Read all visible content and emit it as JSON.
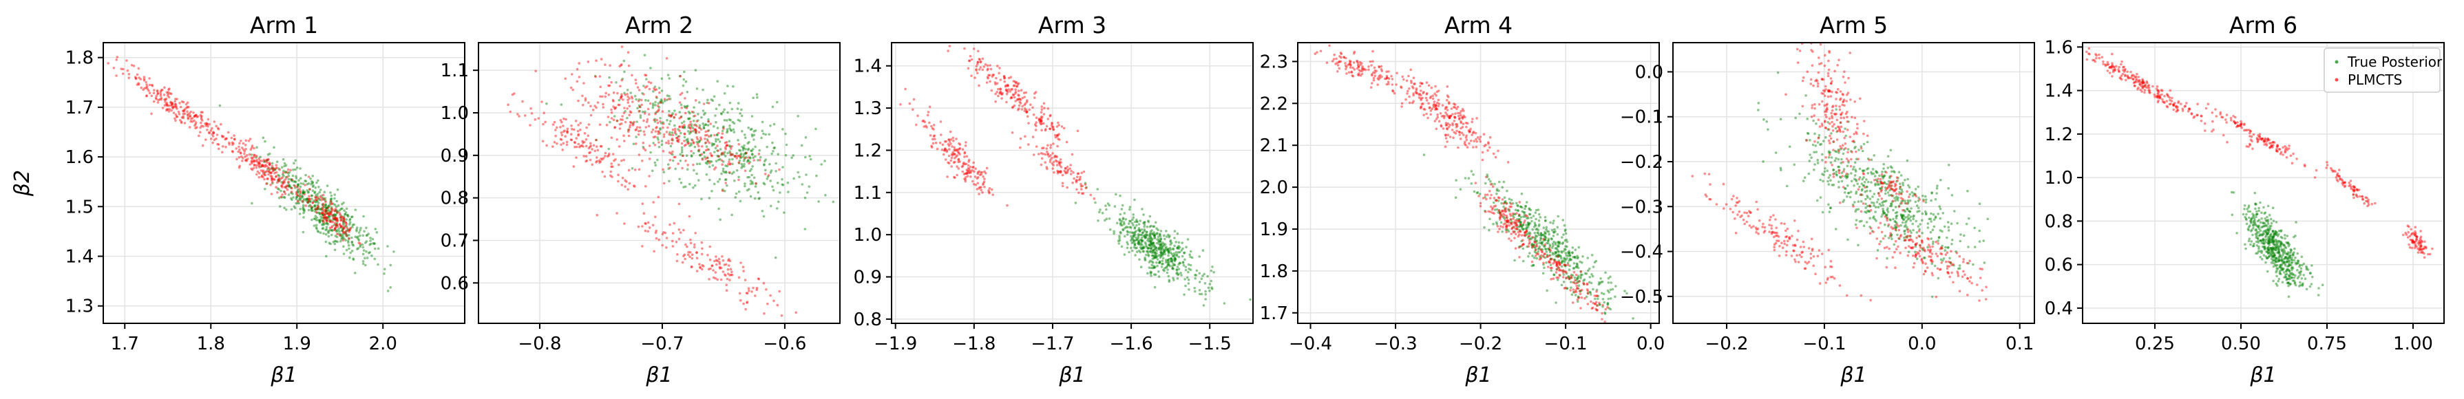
{
  "chart_data": [
    {
      "type": "scatter",
      "title": "Arm 1",
      "xlabel": "β1",
      "ylabel": "β2",
      "xlim": [
        1.675,
        2.095
      ],
      "ylim": [
        1.265,
        1.83
      ],
      "xticks": [
        1.7,
        1.8,
        1.9,
        2.0
      ],
      "xtick_labels": [
        "1.7",
        "1.8",
        "1.9",
        "2.0"
      ],
      "yticks": [
        1.3,
        1.4,
        1.5,
        1.6,
        1.7,
        1.8
      ],
      "ytick_labels": [
        "1.3",
        "1.4",
        "1.5",
        "1.6",
        "1.7",
        "1.8"
      ],
      "grid": true,
      "series": [
        {
          "name": "True Posterior",
          "color": "#008000",
          "clusters": [
            {
              "cx": 1.93,
              "cy": 1.49,
              "major": 0.085,
              "minor": 0.024,
              "angle_deg": -44,
              "n": 520
            }
          ]
        },
        {
          "name": "PLMCTS",
          "color": "#ff0000",
          "clusters": [
            {
              "cx": 1.76,
              "cy": 1.7,
              "major": 0.075,
              "minor": 0.012,
              "angle_deg": -36,
              "n": 220
            },
            {
              "cx": 1.86,
              "cy": 1.58,
              "major": 0.06,
              "minor": 0.014,
              "angle_deg": -38,
              "n": 200
            },
            {
              "cx": 1.94,
              "cy": 1.48,
              "major": 0.04,
              "minor": 0.012,
              "angle_deg": -42,
              "n": 140
            }
          ]
        }
      ]
    },
    {
      "type": "scatter",
      "title": "Arm 2",
      "xlabel": "β1",
      "ylabel": "",
      "xlim": [
        -0.85,
        -0.555
      ],
      "ylim": [
        0.505,
        1.165
      ],
      "xticks": [
        -0.8,
        -0.7,
        -0.6
      ],
      "xtick_labels": [
        "−0.8",
        "−0.7",
        "−0.6"
      ],
      "yticks": [
        0.6,
        0.7,
        0.8,
        0.9,
        1.0,
        1.1
      ],
      "ytick_labels": [
        "0.6",
        "0.7",
        "0.8",
        "0.9",
        "1.0",
        "1.1"
      ],
      "grid": true,
      "series": [
        {
          "name": "True Posterior",
          "color": "#008000",
          "clusters": [
            {
              "cx": -0.655,
              "cy": 0.93,
              "major": 0.085,
              "minor": 0.04,
              "angle_deg": -30,
              "n": 520
            }
          ]
        },
        {
          "name": "PLMCTS",
          "color": "#ff0000",
          "clusters": [
            {
              "cx": -0.72,
              "cy": 1.0,
              "major": 0.06,
              "minor": 0.035,
              "angle_deg": -25,
              "n": 260
            },
            {
              "cx": -0.66,
              "cy": 0.92,
              "major": 0.04,
              "minor": 0.02,
              "angle_deg": -30,
              "n": 120
            },
            {
              "cx": -0.765,
              "cy": 0.92,
              "major": 0.075,
              "minor": 0.012,
              "angle_deg": -35,
              "n": 140
            },
            {
              "cx": -0.66,
              "cy": 0.645,
              "major": 0.075,
              "minor": 0.014,
              "angle_deg": -30,
              "n": 150
            }
          ]
        }
      ]
    },
    {
      "type": "scatter",
      "title": "Arm 3",
      "xlabel": "β1",
      "ylabel": "",
      "xlim": [
        -1.905,
        -1.445
      ],
      "ylim": [
        0.79,
        1.455
      ],
      "xticks": [
        -1.9,
        -1.8,
        -1.7,
        -1.6,
        -1.5
      ],
      "xtick_labels": [
        "−1.9",
        "−1.8",
        "−1.7",
        "−1.6",
        "−1.5"
      ],
      "yticks": [
        0.8,
        0.9,
        1.0,
        1.1,
        1.2,
        1.3,
        1.4
      ],
      "ytick_labels": [
        "0.8",
        "0.9",
        "1.0",
        "1.1",
        "1.2",
        "1.3",
        "1.4"
      ],
      "grid": true,
      "series": [
        {
          "name": "True Posterior",
          "color": "#008000",
          "clusters": [
            {
              "cx": -1.57,
              "cy": 0.97,
              "major": 0.075,
              "minor": 0.025,
              "angle_deg": -40,
              "n": 540
            }
          ]
        },
        {
          "name": "PLMCTS",
          "color": "#ff0000",
          "clusters": [
            {
              "cx": -1.75,
              "cy": 1.33,
              "major": 0.1,
              "minor": 0.015,
              "angle_deg": -42,
              "n": 220
            },
            {
              "cx": -1.82,
              "cy": 1.18,
              "major": 0.075,
              "minor": 0.015,
              "angle_deg": -48,
              "n": 180
            },
            {
              "cx": -1.69,
              "cy": 1.16,
              "major": 0.045,
              "minor": 0.012,
              "angle_deg": -40,
              "n": 100
            }
          ]
        }
      ]
    },
    {
      "type": "scatter",
      "title": "Arm 4",
      "xlabel": "β1",
      "ylabel": "",
      "xlim": [
        -0.415,
        0.01
      ],
      "ylim": [
        1.675,
        2.345
      ],
      "xticks": [
        -0.4,
        -0.3,
        -0.2,
        -0.1,
        0.0
      ],
      "xtick_labels": [
        "−0.4",
        "−0.3",
        "−0.2",
        "−0.1",
        "0.0"
      ],
      "yticks": [
        1.7,
        1.8,
        1.9,
        2.0,
        2.1,
        2.2,
        2.3
      ],
      "ytick_labels": [
        "1.7",
        "1.8",
        "1.9",
        "2.0",
        "2.1",
        "2.2",
        "2.3"
      ],
      "grid": true,
      "series": [
        {
          "name": "True Posterior",
          "color": "#008000",
          "clusters": [
            {
              "cx": -0.12,
              "cy": 1.86,
              "major": 0.1,
              "minor": 0.025,
              "angle_deg": -42,
              "n": 520
            }
          ]
        },
        {
          "name": "PLMCTS",
          "color": "#ff0000",
          "clusters": [
            {
              "cx": -0.34,
              "cy": 2.28,
              "major": 0.05,
              "minor": 0.012,
              "angle_deg": -22,
              "n": 120
            },
            {
              "cx": -0.24,
              "cy": 2.17,
              "major": 0.075,
              "minor": 0.02,
              "angle_deg": -40,
              "n": 240
            },
            {
              "cx": -0.17,
              "cy": 1.93,
              "major": 0.04,
              "minor": 0.015,
              "angle_deg": -50,
              "n": 120
            },
            {
              "cx": -0.1,
              "cy": 1.79,
              "major": 0.09,
              "minor": 0.012,
              "angle_deg": -45,
              "n": 160
            }
          ]
        }
      ]
    },
    {
      "type": "scatter",
      "title": "Arm 5",
      "xlabel": "β1",
      "ylabel": "",
      "xlim": [
        -0.255,
        0.115
      ],
      "ylim": [
        -0.56,
        0.065
      ],
      "xticks": [
        -0.2,
        -0.1,
        0.0,
        0.1
      ],
      "xtick_labels": [
        "−0.2",
        "−0.1",
        "0.0",
        "0.1"
      ],
      "yticks": [
        -0.5,
        -0.4,
        -0.3,
        -0.2,
        -0.1,
        0.0
      ],
      "ytick_labels": [
        "−0.5",
        "−0.4",
        "−0.3",
        "−0.2",
        "−0.1",
        "0.0"
      ],
      "grid": true,
      "series": [
        {
          "name": "True Posterior",
          "color": "#008000",
          "clusters": [
            {
              "cx": -0.04,
              "cy": -0.28,
              "major": 0.1,
              "minor": 0.04,
              "angle_deg": -35,
              "n": 560
            }
          ]
        },
        {
          "name": "PLMCTS",
          "color": "#ff0000",
          "clusters": [
            {
              "cx": -0.09,
              "cy": -0.08,
              "major": 0.075,
              "minor": 0.025,
              "angle_deg": -75,
              "n": 220
            },
            {
              "cx": -0.15,
              "cy": -0.36,
              "major": 0.09,
              "minor": 0.015,
              "angle_deg": -35,
              "n": 150
            },
            {
              "cx": 0.0,
              "cy": -0.4,
              "major": 0.07,
              "minor": 0.02,
              "angle_deg": -28,
              "n": 170
            },
            {
              "cx": -0.03,
              "cy": -0.26,
              "major": 0.03,
              "minor": 0.012,
              "angle_deg": -40,
              "n": 60
            }
          ]
        }
      ]
    },
    {
      "type": "scatter",
      "title": "Arm 6",
      "xlabel": "β1",
      "ylabel": "",
      "xlim": [
        0.04,
        1.09
      ],
      "ylim": [
        0.33,
        1.62
      ],
      "xticks": [
        0.25,
        0.5,
        0.75,
        1.0
      ],
      "xtick_labels": [
        "0.25",
        "0.50",
        "0.75",
        "1.00"
      ],
      "yticks": [
        0.4,
        0.6,
        0.8,
        1.0,
        1.2,
        1.4,
        1.6
      ],
      "ytick_labels": [
        "0.4",
        "0.6",
        "0.8",
        "1.0",
        "1.2",
        "1.4",
        "1.6"
      ],
      "grid": true,
      "legend": {
        "placement": "upper-right",
        "entries": [
          "True Posterior",
          "PLMCTS"
        ]
      },
      "series": [
        {
          "name": "True Posterior",
          "color": "#008000",
          "clusters": [
            {
              "cx": 0.6,
              "cy": 0.67,
              "major": 0.14,
              "minor": 0.05,
              "angle_deg": -55,
              "n": 540
            }
          ]
        },
        {
          "name": "PLMCTS",
          "color": "#ff0000",
          "clusters": [
            {
              "cx": 0.22,
              "cy": 1.42,
              "major": 0.22,
              "minor": 0.02,
              "angle_deg": -30,
              "n": 220
            },
            {
              "cx": 0.55,
              "cy": 1.19,
              "major": 0.15,
              "minor": 0.015,
              "angle_deg": -30,
              "n": 120
            },
            {
              "cx": 0.82,
              "cy": 0.95,
              "major": 0.1,
              "minor": 0.012,
              "angle_deg": -40,
              "n": 70
            },
            {
              "cx": 1.01,
              "cy": 0.7,
              "major": 0.05,
              "minor": 0.02,
              "angle_deg": -55,
              "n": 80
            }
          ]
        }
      ]
    }
  ]
}
